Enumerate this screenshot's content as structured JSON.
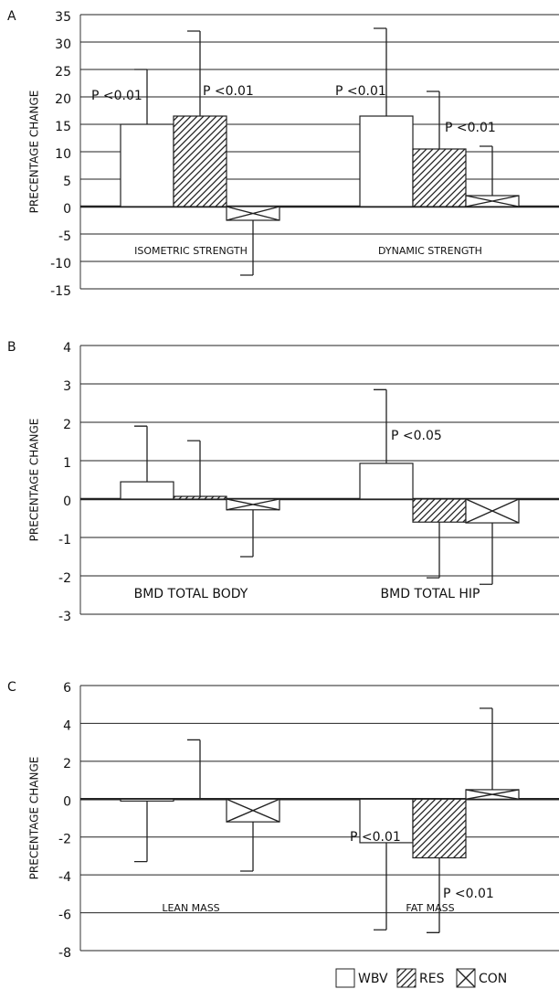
{
  "chart_data": [
    {
      "type": "bar",
      "title": "A",
      "y_label": "PRECENTAGE CHANGE",
      "categories": [
        "ISOMETRIC STRENGTH",
        "DYNAMIC STRENGTH"
      ],
      "series": [
        {
          "name": "WBV",
          "color": "#ffffff",
          "pattern": "none",
          "values": [
            15,
            16.5
          ],
          "errors": [
            10,
            16
          ]
        },
        {
          "name": "RES",
          "color": "#ffffff",
          "pattern": "hatch",
          "values": [
            16.5,
            10.5
          ],
          "errors": [
            15.5,
            10.5
          ]
        },
        {
          "name": "CON",
          "color": "#ffffff",
          "pattern": "cross",
          "values": [
            -2.5,
            2
          ],
          "errors": [
            10,
            9
          ]
        }
      ],
      "ylim": [
        -15,
        35
      ],
      "yticks": [
        -15,
        -10,
        -5,
        0,
        5,
        10,
        15,
        20,
        25,
        30,
        35
      ],
      "grid": true,
      "annotations": [
        {
          "text": "P <0.01"
        },
        {
          "text": "P <0.01"
        },
        {
          "text": "P <0.01"
        },
        {
          "text": "P <0.01"
        }
      ]
    },
    {
      "type": "bar",
      "title": "B",
      "y_label": "PRECENTAGE CHANGE",
      "categories": [
        "BMD TOTAL BODY",
        "BMD TOTAL HIP"
      ],
      "series": [
        {
          "name": "WBV",
          "color": "#ffffff",
          "pattern": "none",
          "values": [
            0.45,
            0.93
          ],
          "errors": [
            1.45,
            1.92
          ]
        },
        {
          "name": "RES",
          "color": "#ffffff",
          "pattern": "hatch",
          "values": [
            0.07,
            -0.6
          ],
          "errors": [
            1.45,
            1.45
          ]
        },
        {
          "name": "CON",
          "color": "#ffffff",
          "pattern": "cross",
          "values": [
            -0.28,
            -0.62
          ],
          "errors": [
            1.22,
            1.6
          ]
        }
      ],
      "ylim": [
        -3,
        4
      ],
      "yticks": [
        -3,
        -2,
        -1,
        0,
        1,
        2,
        3,
        4
      ],
      "grid": true,
      "annotations": [
        {
          "text": "P <0.05"
        }
      ]
    },
    {
      "type": "bar",
      "title": "C",
      "y_label": "PRECENTAGE CHANGE",
      "categories": [
        "LEAN MASS",
        "FAT MASS"
      ],
      "series": [
        {
          "name": "WBV",
          "color": "#ffffff",
          "pattern": "none",
          "values": [
            -0.1,
            -2.3
          ],
          "errors": [
            3.2,
            4.6
          ]
        },
        {
          "name": "RES",
          "color": "#ffffff",
          "pattern": "hatch",
          "values": [
            0.03,
            -3.1
          ],
          "errors": [
            3.1,
            3.95
          ]
        },
        {
          "name": "CON",
          "color": "#ffffff",
          "pattern": "cross",
          "values": [
            -1.2,
            0.5
          ],
          "errors": [
            2.6,
            4.3
          ]
        }
      ],
      "ylim": [
        -8,
        6
      ],
      "yticks": [
        -8,
        -6,
        -4,
        -2,
        0,
        2,
        4,
        6
      ],
      "grid": true,
      "annotations": [
        {
          "text": "P <0.01"
        },
        {
          "text": "P <0.01"
        }
      ]
    }
  ]
}
